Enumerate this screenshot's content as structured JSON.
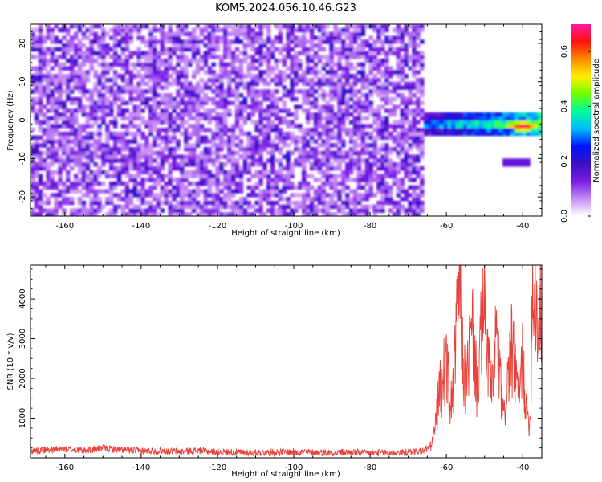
{
  "title": "KOM5.2024.056.10.46.G23",
  "colors": {
    "snr_line": "#e8413a",
    "axis": "#000000",
    "colormap": [
      "#ffffff",
      "#c58bf5",
      "#7a1be6",
      "#3a10c0",
      "#0014ff",
      "#00b7ff",
      "#00ff9a",
      "#6cff00",
      "#ffee00",
      "#ff8800",
      "#ff1010",
      "#ff1aa0"
    ]
  },
  "chart_data": [
    {
      "type": "heatmap",
      "title": "KOM5.2024.056.10.46.G23",
      "xlabel": "Height of straight line (km)",
      "ylabel": "Frequency (Hz)",
      "xlim": [
        -169,
        -35
      ],
      "ylim": [
        -25,
        25
      ],
      "xticks": [
        -160,
        -140,
        -120,
        -100,
        -80,
        -60,
        -40
      ],
      "yticks": [
        -20,
        -10,
        0,
        10,
        20
      ],
      "colorbar": {
        "label": "Normalized spectral amplitude",
        "range": [
          0,
          0.7
        ],
        "ticks": [
          "0.0",
          "0.2",
          "0.4",
          "0.6"
        ]
      },
      "description_of_values": "noise-level amplitude (0.05-0.2) spread over all frequencies for heights below -66 km; a narrow band near 0 Hz (-3 to 1 Hz) for heights above -66 km reaching ~0.7 around -40 km; small patch near -10 Hz at about -42 km",
      "features": [
        {
          "x": [
            -66,
            -35
          ],
          "y": [
            -3,
            1
          ],
          "peak_x": -40,
          "peak_y": -1.5,
          "peak_value": 0.7
        },
        {
          "x": [
            -45,
            -38
          ],
          "y": [
            -12,
            -10
          ],
          "peak_value": 0.15
        }
      ]
    },
    {
      "type": "line",
      "xlabel": "Height of straight line (km)",
      "ylabel": "SNR (10 * v/v)",
      "xlim": [
        -169,
        -35
      ],
      "ylim": [
        0,
        4850
      ],
      "xticks": [
        -160,
        -140,
        -120,
        -100,
        -80,
        -60,
        -40
      ],
      "yticks": [
        1000,
        2000,
        3000,
        4000
      ],
      "series": [
        {
          "x": [
            -169,
            -165,
            -160,
            -155,
            -150,
            -145,
            -140,
            -135,
            -130,
            -125,
            -120,
            -115,
            -110,
            -105,
            -100,
            -95,
            -90,
            -85,
            -80,
            -75,
            -70,
            -66,
            -64,
            -63,
            -62,
            -61,
            -60,
            -59,
            -58,
            -57,
            -56.5,
            -56,
            -55,
            -54,
            -53,
            -52,
            -51,
            -50,
            -49,
            -48,
            -47,
            -46,
            -45,
            -44,
            -43,
            -42,
            -41,
            -40,
            -39,
            -38,
            -37.5,
            -37,
            -36,
            -35
          ],
          "values": [
            180,
            200,
            220,
            190,
            240,
            200,
            170,
            180,
            160,
            180,
            150,
            140,
            130,
            140,
            150,
            140,
            130,
            140,
            120,
            130,
            140,
            180,
            300,
            700,
            1600,
            1900,
            2500,
            1200,
            2000,
            3900,
            4850,
            2800,
            1800,
            2600,
            3200,
            1700,
            2900,
            4000,
            2400,
            1600,
            3200,
            2000,
            900,
            1900,
            2700,
            2200,
            1500,
            2500,
            1100,
            900,
            4500,
            4400,
            3400,
            4000
          ]
        }
      ]
    }
  ]
}
